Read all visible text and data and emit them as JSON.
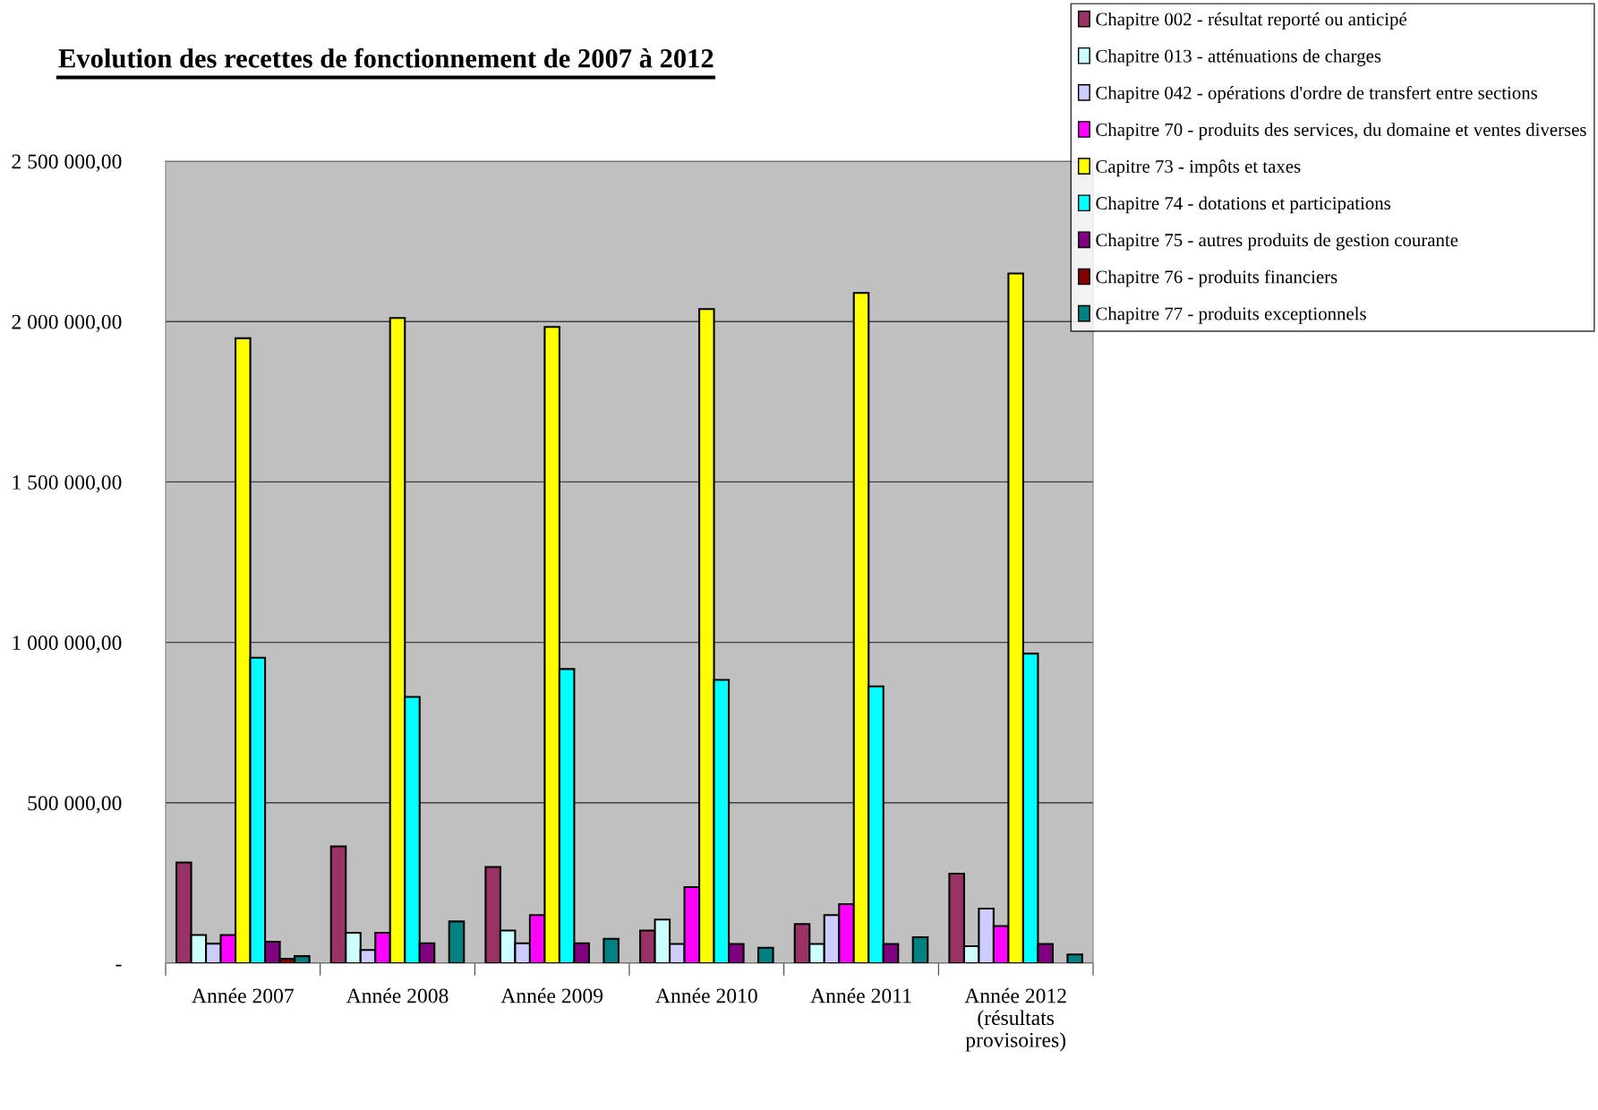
{
  "chart_data": {
    "type": "bar",
    "title": "Evolution des recettes de fonctionnement de 2007 à 2012",
    "categories": [
      "Année 2007",
      "Année 2008",
      "Année 2009",
      "Année 2010",
      "Année 2011",
      "Année 2012\n(résultats\nprovisoires)"
    ],
    "series": [
      {
        "name": "Chapitre 002 - résultat reporté ou anticipé",
        "color": "#993366",
        "values": [
          314000,
          364000,
          300000,
          102000,
          122000,
          279000
        ]
      },
      {
        "name": "Chapitre 013 - atténuations de charges",
        "color": "#ccffff",
        "values": [
          88000,
          95000,
          102000,
          136000,
          60000,
          53000
        ]
      },
      {
        "name": "Chapitre 042 - opérations d'ordre de transfert entre sections",
        "color": "#ccccff",
        "values": [
          61000,
          41000,
          62000,
          60000,
          150000,
          170000
        ]
      },
      {
        "name": "Chapitre 70 - produits des services, du domaine et ventes diverses",
        "color": "#ff00ff",
        "values": [
          88000,
          95000,
          150000,
          237000,
          184000,
          116000
        ]
      },
      {
        "name": "Capitre 73 - impôts et taxes",
        "color": "#ffff00",
        "values": [
          1948000,
          2011000,
          1983000,
          2039000,
          2089000,
          2150000
        ]
      },
      {
        "name": "Chapitre 74 - dotations et participations",
        "color": "#00ffff",
        "values": [
          952000,
          830000,
          917000,
          883000,
          863000,
          965000
        ]
      },
      {
        "name": "Chapitre 75 - autres produits de gestion courante",
        "color": "#800080",
        "values": [
          67000,
          62000,
          62000,
          60000,
          60000,
          60000
        ]
      },
      {
        "name": "Chapitre 76 - produits financiers",
        "color": "#800000",
        "values": [
          14000,
          null,
          null,
          null,
          null,
          null
        ]
      },
      {
        "name": "Chapitre 77 - produits exceptionnels",
        "color": "#008080",
        "values": [
          22000,
          130000,
          76000,
          48000,
          81000,
          27000
        ]
      }
    ],
    "ylim": [
      0,
      2500000
    ],
    "yticks": [
      {
        "value": 0,
        "label": "-"
      },
      {
        "value": 500000,
        "label": "500 000,00"
      },
      {
        "value": 1000000,
        "label": "1 000 000,00"
      },
      {
        "value": 1500000,
        "label": "1 500 000,00"
      },
      {
        "value": 2000000,
        "label": "2 000 000,00"
      },
      {
        "value": 2500000,
        "label": "2 500 000,00"
      }
    ],
    "grid": "y",
    "legend": "top right"
  }
}
